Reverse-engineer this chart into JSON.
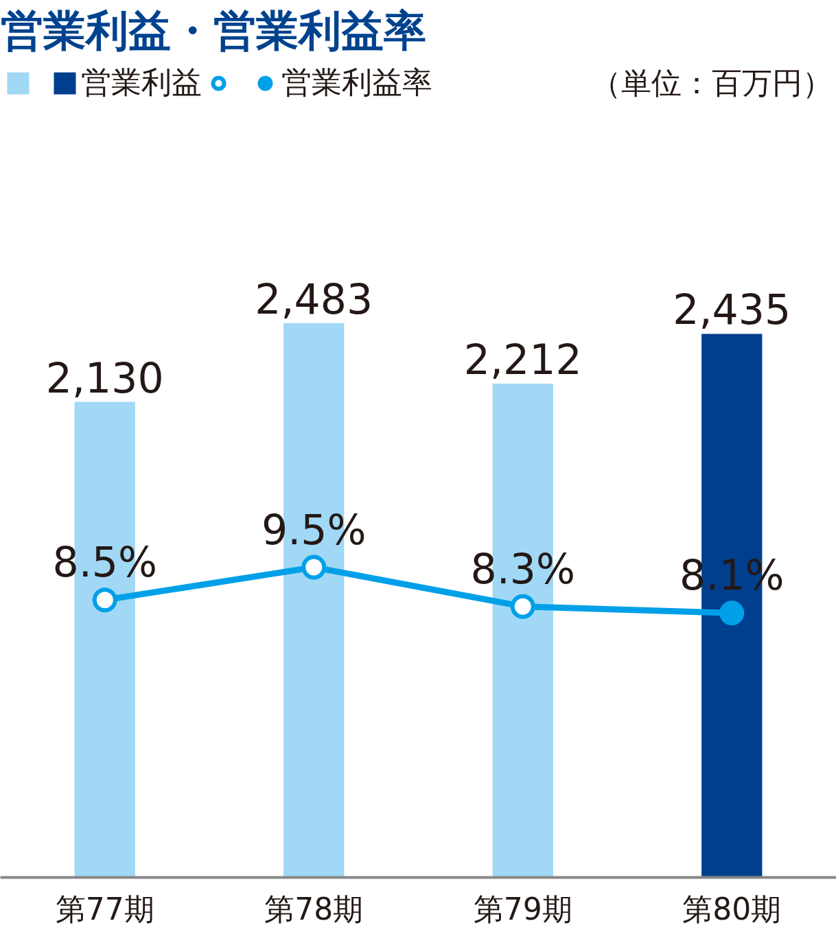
{
  "chart_data": {
    "type": "bar",
    "title": "営業利益・営業利益率",
    "categories": [
      "第77期",
      "第78期",
      "第79期",
      "第80期"
    ],
    "legend": "top left",
    "data_labels": true,
    "annotations": [
      "（単位：百万円）"
    ],
    "series": [
      {
        "name": "営業利益",
        "color": "#a0d8f5",
        "colors": [
          "#a0d8f5",
          "#a0d8f5",
          "#a0d8f5",
          "#003f8e"
        ],
        "values": [
          2130,
          2483,
          2212,
          2435
        ],
        "value_labels": [
          "2,130",
          "2,483",
          "2,212",
          "2,435"
        ]
      },
      {
        "name": "営業利益率",
        "type": "line",
        "axis": "y2",
        "color": "#00a0e9",
        "marker": "circle",
        "line_style": "solid",
        "values": [
          8.5,
          9.5,
          8.3,
          8.1
        ],
        "value_labels": [
          "8.5%",
          "9.5%",
          "8.3%",
          "8.1%"
        ]
      }
    ]
  }
}
